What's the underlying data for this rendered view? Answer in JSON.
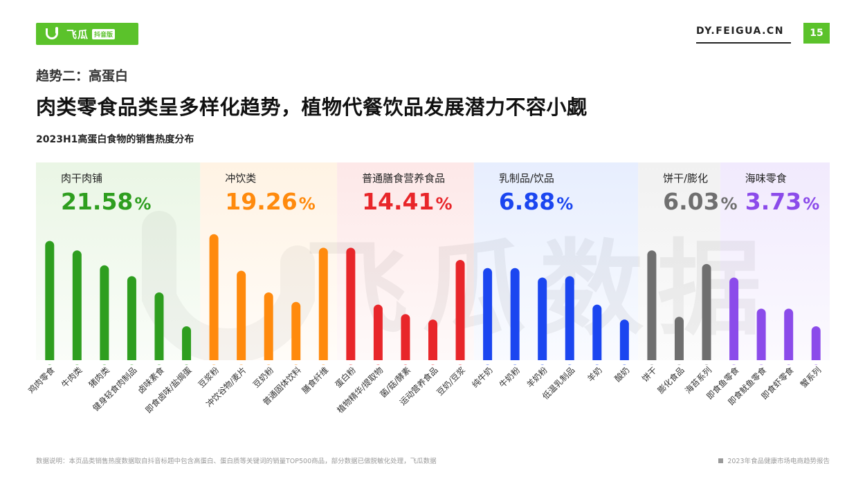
{
  "header": {
    "logo_text": "飞瓜",
    "logo_badge": "抖音版",
    "site": "DY.FEIGUA.CN",
    "page_number": "15"
  },
  "section_label": "趋势二：高蛋白",
  "headline": "肉类零食品类呈多样化趋势，植物代餐饮品发展潜力不容小觑",
  "chart_data": {
    "type": "bar",
    "title": "2023H1高蛋白食物的销售热度分布",
    "groups": [
      {
        "name": "肉干肉铺",
        "share": "21.58",
        "percent_sign": "%",
        "color": "#2e9e1f",
        "bg": "#eaf6e5",
        "categories": [
          "鸡肉零食",
          "牛肉类",
          "猪肉类",
          "健身轻食肉制品",
          "卤味素食",
          "即食卤味/盐焗蛋"
        ],
        "values": [
          88,
          81,
          70,
          62,
          50,
          25
        ]
      },
      {
        "name": "冲饮类",
        "share": "19.26",
        "percent_sign": "%",
        "color": "#ff8a0d",
        "bg": "#fff3e4",
        "categories": [
          "豆浆粉",
          "冲饮谷物/麦片",
          "豆奶粉",
          "普通固体饮料",
          "膳食纤维"
        ],
        "values": [
          93,
          66,
          50,
          43,
          83
        ]
      },
      {
        "name": "普通膳食营养食品",
        "share": "14.41",
        "percent_sign": "%",
        "color": "#e8262a",
        "bg": "#fde8e8",
        "categories": [
          "蛋白粉",
          "植物精华/提取物",
          "菌/菇/酵素",
          "运动营养食品",
          "豆奶/豆浆"
        ],
        "values": [
          83,
          41,
          34,
          30,
          74
        ]
      },
      {
        "name": "乳制品/饮品",
        "share": "6.88",
        "percent_sign": "%",
        "color": "#1b46f0",
        "bg": "#e7eefe",
        "categories": [
          "纯牛奶",
          "牛奶粉",
          "羊奶粉",
          "低温乳制品",
          "羊奶",
          "酸奶"
        ],
        "values": [
          68,
          68,
          61,
          62,
          41,
          30
        ]
      },
      {
        "name": "饼干/膨化",
        "share": "6.03",
        "percent_sign": "%",
        "color": "#6f6f6f",
        "bg": "#f1f1f1",
        "categories": [
          "饼干",
          "膨化食品",
          "海苔系列"
        ],
        "values": [
          81,
          32,
          71
        ]
      },
      {
        "name": "海味零食",
        "share": "3.73",
        "percent_sign": "%",
        "color": "#8b4bea",
        "bg": "#f1eafd",
        "categories": [
          "即食鱼零食",
          "即食鱿鱼零食",
          "即食虾零食",
          "蟹系列"
        ],
        "values": [
          61,
          38,
          38,
          25
        ]
      }
    ],
    "ylim": [
      0,
      100
    ],
    "watermark": "飞瓜数据"
  },
  "footer": {
    "note": "数据说明：本页品类销售热度数据取自抖音标题中包含高蛋白、蛋白质等关键词的销量TOP500商品，部分数据已做脱敏化处理，飞瓜数据",
    "report": "2023年食品健康市场电商趋势报告"
  }
}
